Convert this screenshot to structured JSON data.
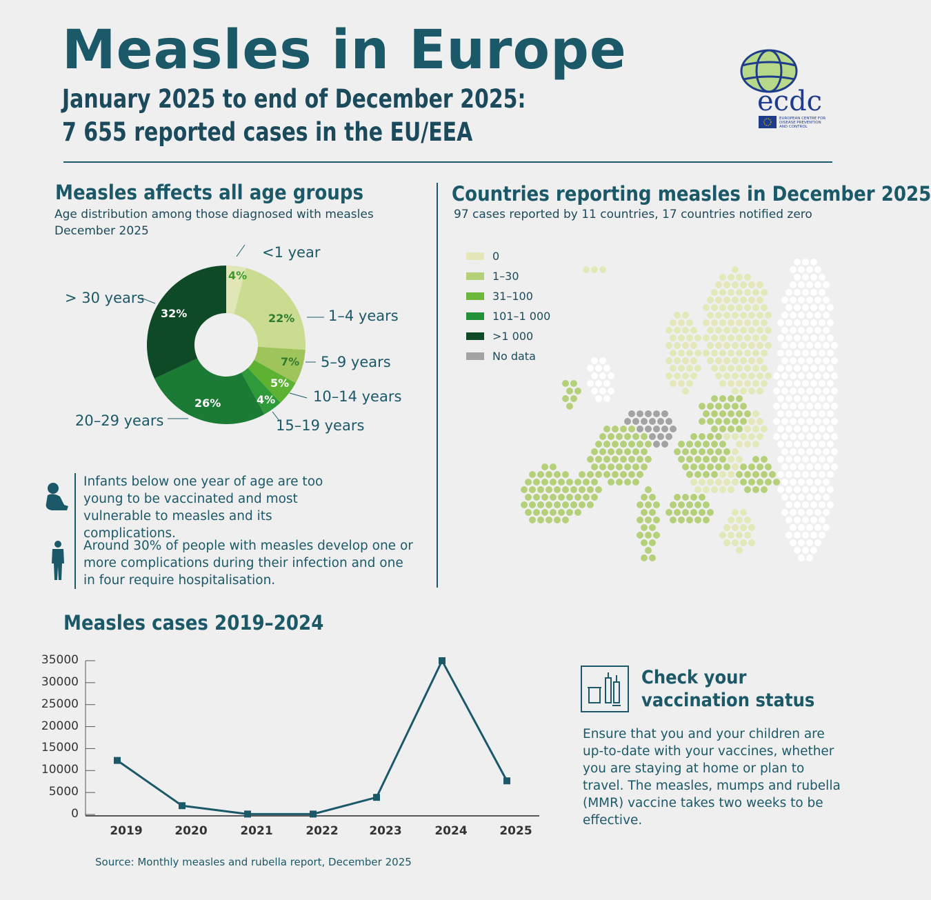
{
  "header": {
    "title": "Measles in Europe",
    "subtitle_line1": "January 2025 to end of December 2025:",
    "subtitle_line2": "7 655 reported cases in the EU/EEA",
    "logo_text": "ecdc",
    "logo_caption": "EUROPEAN CENTRE FOR DISEASE PREVENTION AND CONTROL"
  },
  "age": {
    "title": "Measles affects all age groups",
    "subtitle": "Age distribution among those diagnosed with measles",
    "period": "December 2025"
  },
  "notes": [
    {
      "icon": "infant-icon",
      "text": "Infants below one year of age are too young to be vaccinated and most vulnerable to measles and its complications."
    },
    {
      "icon": "person-icon",
      "text": "Around 30% of people with measles develop one or more complications during their infection and one in four require hospitalisation."
    }
  ],
  "map": {
    "title": "Countries reporting measles in December 2025",
    "subtitle": "97 cases reported by 11 countries, 17 countries notified zero",
    "legend": [
      {
        "label": "0",
        "color": "#e3e8b8"
      },
      {
        "label": "1–30",
        "color": "#b4d17a"
      },
      {
        "label": "31–100",
        "color": "#6cb83a"
      },
      {
        "label": "101–1 000",
        "color": "#22913a"
      },
      {
        "label": ">1 000",
        "color": "#0f4a26"
      },
      {
        "label": "No data",
        "color": "#a3a3a3"
      }
    ]
  },
  "vaccination": {
    "icon": "vaccine-vial-icon",
    "title_line1": "Check your",
    "title_line2": "vaccination status",
    "text": "Ensure that you and your children are up-to-date with your vaccines, whether you are staying at home or plan to travel. The measles, mumps and rubella (MMR) vaccine takes two weeks to be effective."
  },
  "source": "Source: Monthly measles and rubella report, December 2025",
  "chart_data": [
    {
      "type": "pie",
      "title": "Measles affects all age groups",
      "donut": true,
      "categories": [
        "<1 year",
        "1–4 years",
        "5–9 years",
        "10–14 years",
        "15–19 years",
        "20–29 years",
        "> 30 years"
      ],
      "values": [
        4,
        22,
        7,
        5,
        4,
        26,
        32
      ],
      "labels": [
        "4%",
        "22%",
        "7%",
        "5%",
        "4%",
        "26%",
        "32%"
      ],
      "colors": [
        "#e0e6b6",
        "#c9dc90",
        "#a0c45c",
        "#5db232",
        "#2e9a3a",
        "#1b7a33",
        "#0f4a26"
      ]
    },
    {
      "type": "line",
      "title": "Measles cases 2019–2024",
      "categories": [
        "2019",
        "2020",
        "2021",
        "2022",
        "2023",
        "2024",
        "2025"
      ],
      "values": [
        12300,
        2000,
        100,
        100,
        3900,
        35000,
        7655
      ],
      "yticks": [
        "35000",
        "30000",
        "25000",
        "20000",
        "15000",
        "10000",
        "5000",
        "0"
      ],
      "ylim": [
        0,
        35000
      ],
      "color": "#1b5868"
    }
  ]
}
